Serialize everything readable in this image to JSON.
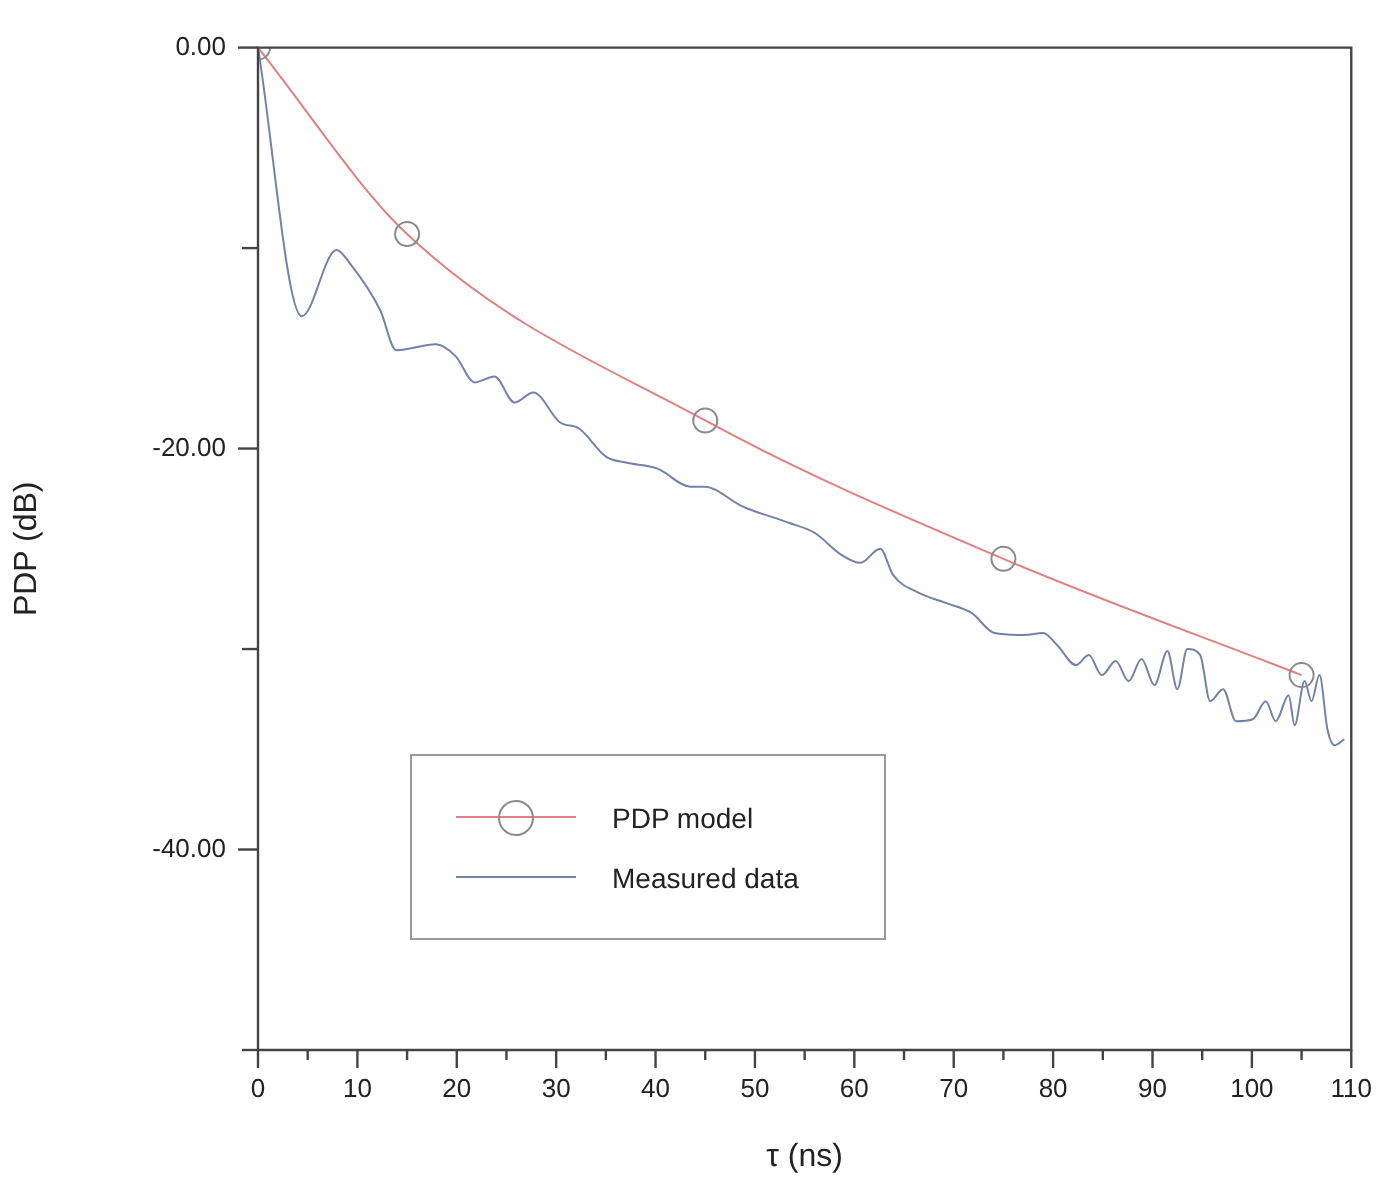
{
  "chart_data": {
    "type": "line",
    "xlabel": "τ (ns)",
    "ylabel": "PDP (dB)",
    "xlim": [
      0,
      110
    ],
    "ylim": [
      -50,
      0
    ],
    "xticks": [
      0,
      {
        "value": 5,
        "label": null
      },
      10,
      {
        "value": 15,
        "label": null
      },
      20,
      {
        "value": 25,
        "label": null
      },
      30,
      {
        "value": 35,
        "label": null
      },
      40,
      {
        "value": 45,
        "label": null
      },
      50,
      {
        "value": 55,
        "label": null
      },
      60,
      {
        "value": 65,
        "label": null
      },
      70,
      {
        "value": 75,
        "label": null
      },
      80,
      {
        "value": 85,
        "label": null
      },
      90,
      {
        "value": 95,
        "label": null
      },
      100,
      {
        "value": 105,
        "label": null
      },
      110
    ],
    "yticks": [
      {
        "value": 0,
        "label": "0.00"
      },
      {
        "value": -10,
        "label": null
      },
      {
        "value": -20,
        "label": "-20.00"
      },
      {
        "value": -30,
        "label": null
      },
      {
        "value": -40,
        "label": "-40.00"
      },
      {
        "value": -50,
        "label": null
      }
    ],
    "grid": false,
    "legend": "bottom left",
    "series": [
      {
        "name": "PDP model",
        "color": "#e08080",
        "marker": "circle",
        "x": [
          0,
          15,
          45,
          75,
          105
        ],
        "values": [
          0,
          -9.3,
          -18.6,
          -25.5,
          -31.3
        ]
      },
      {
        "name": "Measured data",
        "color": "#7282aa",
        "marker": "none",
        "x": [
          0,
          4.4,
          7.9,
          9.3,
          12.3,
          13.9,
          17.9,
          19.9,
          21.8,
          23.8,
          25.8,
          27.7,
          30.4,
          32.3,
          35.0,
          37.0,
          40.2,
          43.5,
          44.9,
          48.8,
          53.4,
          56.0,
          58.7,
          60.6,
          62.6,
          63.9,
          66.5,
          69.2,
          71.8,
          74.1,
          77.1,
          79.0,
          80.4,
          82.3,
          83.6,
          84.9,
          86.3,
          87.6,
          88.9,
          90.2,
          91.5,
          92.5,
          93.5,
          94.8,
          95.8,
          97.1,
          98.4,
          100.1,
          101.4,
          102.4,
          103.7,
          104.3,
          105.3,
          106.0,
          106.8,
          107.6,
          108.3,
          109.3
        ],
        "values": [
          0,
          -13.4,
          -10.1,
          -10.8,
          -13.1,
          -15.1,
          -14.8,
          -15.4,
          -16.7,
          -16.4,
          -17.7,
          -17.2,
          -18.7,
          -19.0,
          -20.4,
          -20.7,
          -21.0,
          -21.9,
          -21.9,
          -22.9,
          -23.7,
          -24.2,
          -25.3,
          -25.7,
          -25.0,
          -26.3,
          -27.2,
          -27.7,
          -28.2,
          -29.2,
          -29.3,
          -29.2,
          -29.8,
          -30.8,
          -30.3,
          -31.3,
          -30.6,
          -31.6,
          -30.5,
          -31.8,
          -30.1,
          -32.0,
          -30.0,
          -30.3,
          -32.6,
          -32.0,
          -33.6,
          -33.5,
          -32.6,
          -33.6,
          -32.3,
          -33.8,
          -31.6,
          -32.6,
          -31.3,
          -34.0,
          -34.8,
          -34.5
        ]
      }
    ]
  }
}
